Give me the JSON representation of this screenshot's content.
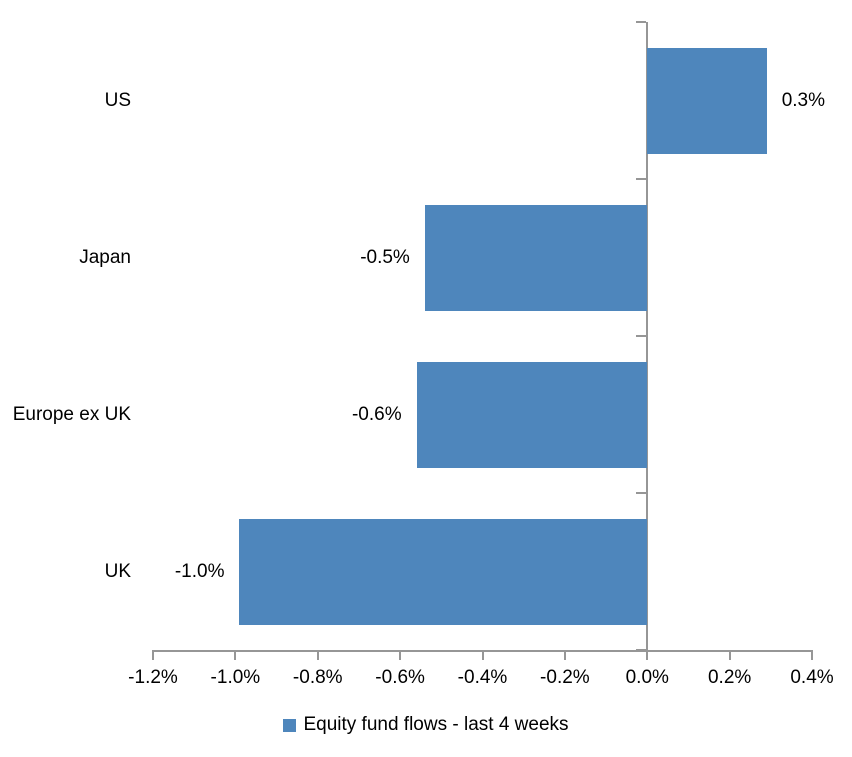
{
  "chart_data": {
    "type": "bar",
    "orientation": "horizontal",
    "title": "",
    "xlabel": "",
    "ylabel": "",
    "categories": [
      "US",
      "Japan",
      "Europe ex UK",
      "UK"
    ],
    "values": [
      0.29,
      -0.54,
      -0.56,
      -0.99
    ],
    "value_labels": [
      "0.3%",
      "-0.5%",
      "-0.6%",
      "-1.0%"
    ],
    "xlim": [
      -1.2,
      0.4
    ],
    "x_tick_step": 0.2,
    "x_tick_labels": [
      "-1.2%",
      "-1.0%",
      "-0.8%",
      "-0.6%",
      "-0.4%",
      "-0.2%",
      "0.0%",
      "0.2%",
      "0.4%"
    ],
    "grid": "off",
    "legend_position": "bottom",
    "legend": [
      {
        "label": "Equity fund flows - last 4 weeks",
        "color": "#4E86BC"
      }
    ],
    "bar_color": "#4E86BC",
    "axis_color": "#969696",
    "text_color": "#000000",
    "background": "#FFFFFF"
  }
}
